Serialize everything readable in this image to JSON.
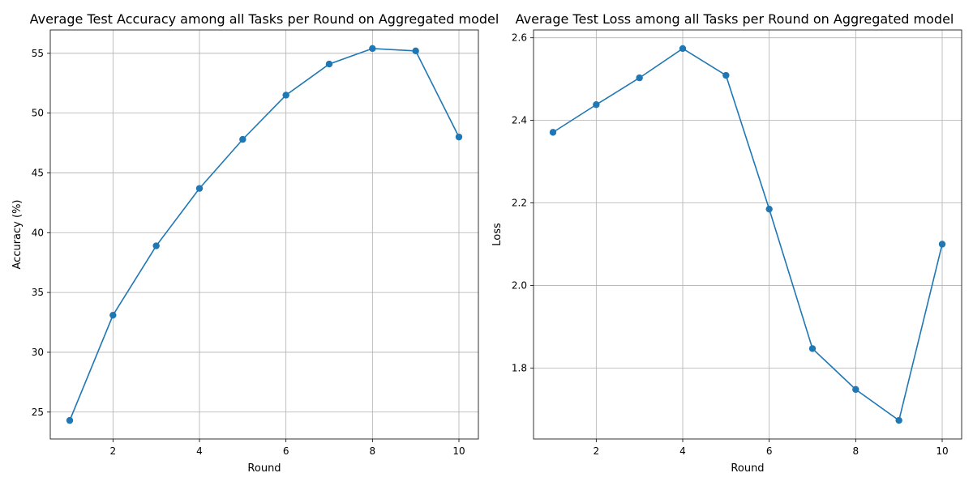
{
  "chart_data": [
    {
      "type": "line",
      "title": "Average Test Accuracy among all Tasks per Round on Aggregated model",
      "xlabel": "Round",
      "ylabel": "Accuracy (%)",
      "x": [
        1,
        2,
        3,
        4,
        5,
        6,
        7,
        8,
        9,
        10
      ],
      "series": [
        {
          "values": [
            24.3,
            33.1,
            38.9,
            43.7,
            47.8,
            51.5,
            54.1,
            55.4,
            55.2,
            48.0
          ]
        }
      ],
      "xlim": [
        0.55,
        10.45
      ],
      "ylim": [
        22.75,
        56.95
      ],
      "xticks": [
        2,
        4,
        6,
        8,
        10
      ],
      "yticks": [
        25,
        30,
        35,
        40,
        45,
        50,
        55
      ],
      "grid": true,
      "marker": "circle",
      "line_color": "#1f77b4"
    },
    {
      "type": "line",
      "title": "Average Test Loss among all Tasks per Round on Aggregated model",
      "xlabel": "Round",
      "ylabel": "Loss",
      "x": [
        1,
        2,
        3,
        4,
        5,
        6,
        7,
        8,
        9,
        10
      ],
      "series": [
        {
          "values": [
            2.371,
            2.438,
            2.503,
            2.574,
            2.509,
            2.185,
            1.847,
            1.748,
            1.673,
            2.1
          ]
        }
      ],
      "xlim": [
        0.55,
        10.45
      ],
      "ylim": [
        1.628,
        2.619
      ],
      "xticks": [
        2,
        4,
        6,
        8,
        10
      ],
      "yticks": [
        1.8,
        2.0,
        2.2,
        2.4,
        2.6
      ],
      "ytick_decimals": 1,
      "grid": true,
      "marker": "circle",
      "line_color": "#1f77b4"
    }
  ]
}
